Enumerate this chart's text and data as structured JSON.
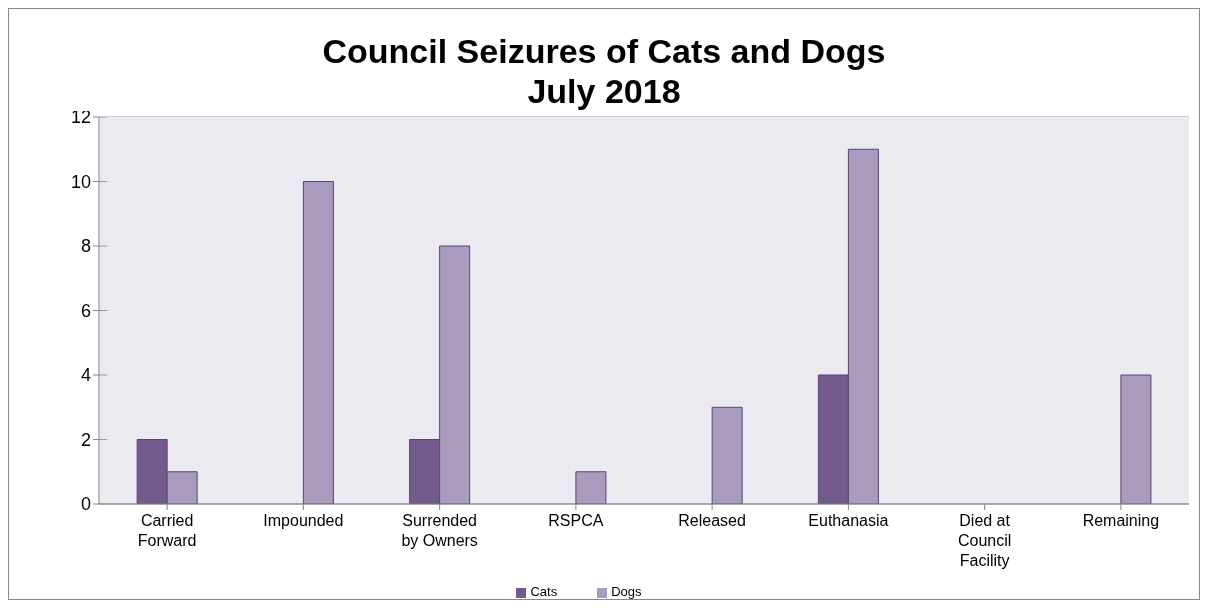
{
  "chart_data": {
    "type": "bar",
    "title": "Council Seizures of Cats and Dogs\nJuly 2018",
    "categories": [
      "Carried Forward",
      "Impounded",
      "Surrended by Owners",
      "RSPCA",
      "Released",
      "Euthanasia",
      "Died at Council Facility",
      "Remaining"
    ],
    "series": [
      {
        "name": "Cats",
        "color": "#725a8c",
        "values": [
          2,
          0,
          2,
          0,
          0,
          4,
          0,
          0
        ]
      },
      {
        "name": "Dogs",
        "color": "#a99bbd",
        "values": [
          1,
          10,
          8,
          1,
          3,
          11,
          0,
          4
        ]
      }
    ],
    "ylim": [
      0,
      12
    ],
    "yticks": [
      0,
      2,
      4,
      6,
      8,
      10,
      12
    ],
    "grid": "y",
    "legend": "bottom"
  }
}
